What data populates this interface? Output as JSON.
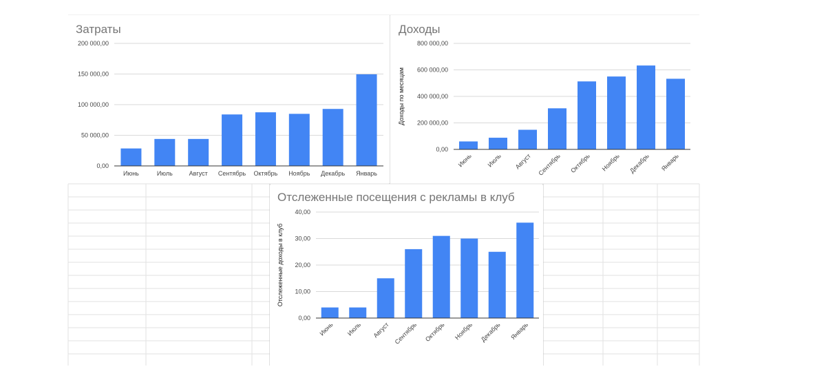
{
  "colors": {
    "bar": "#4285f4",
    "grid": "#d9d9d9",
    "baseline": "#333333",
    "sheet_line": "#e2e2e2",
    "panel_border": "#c0c0c0"
  },
  "chart_data": [
    {
      "type": "bar",
      "title": "Затраты",
      "xlabel": "",
      "ylabel": "",
      "categories": [
        "Июнь",
        "Июль",
        "Август",
        "Сентябрь",
        "Октябрь",
        "Ноябрь",
        "Декабрь",
        "Январь"
      ],
      "values": [
        28500,
        44000,
        44000,
        84000,
        87500,
        85000,
        93000,
        149500
      ],
      "ylim": [
        0,
        200000
      ],
      "yticks": [
        "0,00",
        "50 000,00",
        "100 000,00",
        "150 000,00",
        "200 000,00"
      ],
      "grid": true,
      "xlabels_rotated": false
    },
    {
      "type": "bar",
      "title": "Доходы",
      "xlabel": "",
      "ylabel": "Доходы по месяцам",
      "categories": [
        "Июнь",
        "Июль",
        "Август",
        "Сентябрь",
        "Октябрь",
        "Ноябрь",
        "Декабрь",
        "Январь"
      ],
      "values": [
        60000,
        88000,
        148000,
        310000,
        513000,
        550000,
        633000,
        533000
      ],
      "ylim": [
        0,
        800000
      ],
      "yticks": [
        "0,00",
        "200 000,00",
        "400 000,00",
        "600 000,00",
        "800 000,00"
      ],
      "grid": true,
      "xlabels_rotated": true
    },
    {
      "type": "bar",
      "title": "Отслеженные посещения с рекламы в клуб",
      "xlabel": "",
      "ylabel": "Отслеженные доходы в клуб",
      "categories": [
        "Июнь",
        "Июль",
        "Август",
        "Сентябрь",
        "Октябрь",
        "Ноябрь",
        "Декабрь",
        "Январь"
      ],
      "values": [
        4,
        4,
        15,
        26,
        31,
        30,
        25,
        36
      ],
      "ylim": [
        0,
        40
      ],
      "yticks": [
        "0,00",
        "10,00",
        "20,00",
        "30,00",
        "40,00"
      ],
      "grid": true,
      "xlabels_rotated": true
    }
  ]
}
